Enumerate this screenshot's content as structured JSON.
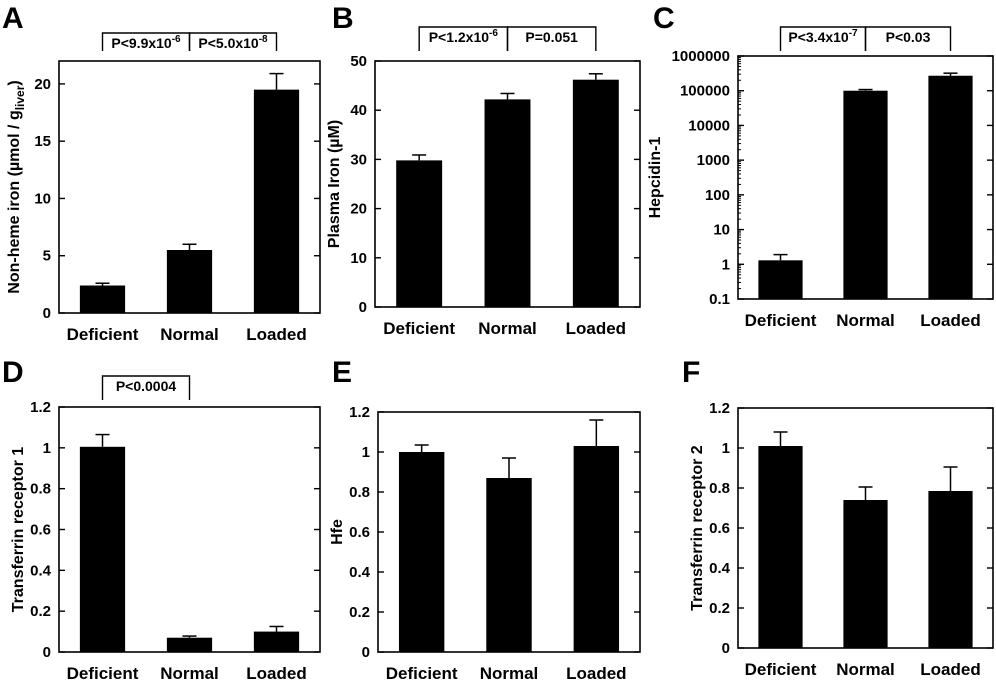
{
  "chart_data": [
    {
      "panel": "A",
      "type": "bar",
      "categories": [
        "Deficient",
        "Normal",
        "Loaded"
      ],
      "values": [
        2.4,
        5.5,
        19.5
      ],
      "errors": [
        0.2,
        0.5,
        1.4
      ],
      "ylabel": "Non-heme iron (µmol / g",
      "ylabel_sub": "liver",
      "ylabel_end": ")",
      "ylim": [
        0,
        22
      ],
      "yticks": [
        0,
        5,
        10,
        15,
        20
      ],
      "log": false,
      "pvalues": [
        {
          "from": 0,
          "to": 1,
          "text": "P<9.9x10",
          "sup": "-6"
        },
        {
          "from": 1,
          "to": 2,
          "text": "P<5.0x10",
          "sup": "-8"
        }
      ]
    },
    {
      "panel": "B",
      "type": "bar",
      "categories": [
        "Deficient",
        "Normal",
        "Loaded"
      ],
      "values": [
        29.8,
        42.2,
        46.2
      ],
      "errors": [
        1.1,
        1.2,
        1.2
      ],
      "ylabel": "Plasma Iron (µM)",
      "ylim": [
        0,
        50
      ],
      "yticks": [
        0,
        10,
        20,
        30,
        40,
        50
      ],
      "log": false,
      "pvalues": [
        {
          "from": 0,
          "to": 1,
          "text": "P<1.2x10",
          "sup": "-6"
        },
        {
          "from": 1,
          "to": 2,
          "text": "P=0.051",
          "sup": ""
        }
      ]
    },
    {
      "panel": "C",
      "type": "bar",
      "categories": [
        "Deficient",
        "Normal",
        "Loaded"
      ],
      "values": [
        1.3,
        100000,
        270000
      ],
      "errors": [
        0.6,
        8000,
        50000
      ],
      "ylabel": "Hepcidin-1",
      "ylim": [
        0.1,
        1000000
      ],
      "yticks": [
        0.1,
        1,
        10,
        100,
        1000,
        10000,
        100000,
        1000000
      ],
      "ytick_labels": [
        "0.1",
        "1",
        "10",
        "100",
        "1000",
        "10000",
        "100000",
        "1000000"
      ],
      "log": true,
      "pvalues": [
        {
          "from": 0,
          "to": 1,
          "text": "P<3.4x10",
          "sup": "-7"
        },
        {
          "from": 1,
          "to": 2,
          "text": "P<0.03",
          "sup": ""
        }
      ]
    },
    {
      "panel": "D",
      "type": "bar",
      "categories": [
        "Deficient",
        "Normal",
        "Loaded"
      ],
      "values": [
        1.005,
        0.07,
        0.1
      ],
      "errors": [
        0.06,
        0.008,
        0.025
      ],
      "ylabel": "Transferrin receptor 1",
      "ylim": [
        0,
        1.2
      ],
      "yticks": [
        0,
        0.2,
        0.4,
        0.6,
        0.8,
        1,
        1.2
      ],
      "ytick_labels": [
        "0",
        "0.2",
        "0.4",
        "0.6",
        "0.8",
        "1",
        "1.2"
      ],
      "log": false,
      "pvalues": [
        {
          "from": 0,
          "to": 1,
          "text": "P<0.0004",
          "sup": ""
        }
      ]
    },
    {
      "panel": "E",
      "type": "bar",
      "categories": [
        "Deficient",
        "Normal",
        "Loaded"
      ],
      "values": [
        1.0,
        0.87,
        1.03
      ],
      "errors": [
        0.035,
        0.1,
        0.13
      ],
      "ylabel": "Hfe",
      "ylim": [
        0,
        1.2
      ],
      "yticks": [
        0,
        0.2,
        0.4,
        0.6,
        0.8,
        1,
        1.2
      ],
      "ytick_labels": [
        "0",
        "0.2",
        "0.4",
        "0.6",
        "0.8",
        "1",
        "1.2"
      ],
      "log": false,
      "pvalues": []
    },
    {
      "panel": "F",
      "type": "bar",
      "categories": [
        "Deficient",
        "Normal",
        "Loaded"
      ],
      "values": [
        1.01,
        0.74,
        0.785
      ],
      "errors": [
        0.07,
        0.065,
        0.12
      ],
      "ylabel": "Transferrin receptor 2",
      "ylim": [
        0,
        1.2
      ],
      "yticks": [
        0,
        0.2,
        0.4,
        0.6,
        0.8,
        1,
        1.2
      ],
      "ytick_labels": [
        "0",
        "0.2",
        "0.4",
        "0.6",
        "0.8",
        "1",
        "1.2"
      ],
      "log": false,
      "pvalues": []
    }
  ]
}
